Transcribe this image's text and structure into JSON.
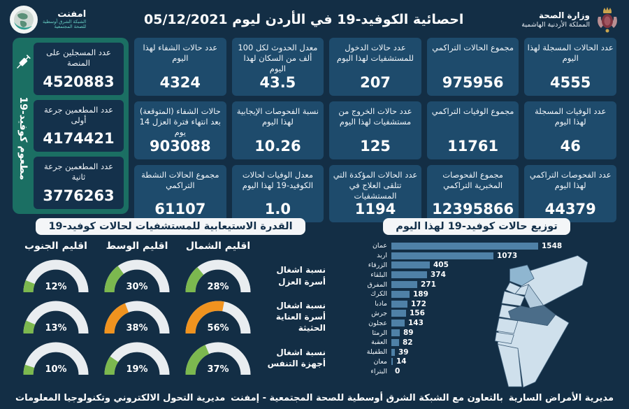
{
  "header": {
    "title": "احصائية الكوفيد-19 في الأردن ليوم  05/12/2021",
    "emphnet": {
      "name": "امفنت",
      "subline1": "الشبكة الشرق أوسطية",
      "subline2": "للصحة المجتمعية"
    },
    "ministry": {
      "name": "وزارة الصحة",
      "country": "المملكة الأردنية الهاشمية"
    }
  },
  "vaccination": {
    "side_label": "مطعوم كوفيد-19",
    "cards": [
      {
        "label": "عدد المسجلين على المنصة",
        "value": "4520883"
      },
      {
        "label": "عدد المطعمين جرعة أولى",
        "value": "4174421"
      },
      {
        "label": "عدد المطعمين جرعة ثانية",
        "value": "3776263"
      }
    ]
  },
  "stat_cards": [
    {
      "label": "عدد الحالات المسجلة لهذا اليوم",
      "value": "4555"
    },
    {
      "label": "مجموع الحالات التراكمي",
      "value": "975956"
    },
    {
      "label": "عدد حالات الدخول للمستشفيات لهذا اليوم",
      "value": "207"
    },
    {
      "label": "معدل الحدوث لكل 100 ألف من السكان لهذا اليوم",
      "value": "43.5"
    },
    {
      "label": "عدد حالات الشفاء لهذا اليوم",
      "value": "4324"
    },
    {
      "label": "عدد الوفيات المسجلة لهذا اليوم",
      "value": "46"
    },
    {
      "label": "مجموع الوفيات التراكمي",
      "value": "11761"
    },
    {
      "label": "عدد حالات الخروج من مستشفيات لهذا اليوم",
      "value": "125"
    },
    {
      "label": "نسبة الفحوصات الإيجابية لهذا اليوم",
      "value": "10.26"
    },
    {
      "label": "حالات الشفاء (المتوقعة) بعد انتهاء فترة العزل 14 يوم",
      "value": "903088"
    },
    {
      "label": "عدد الفحوصات التراكمي لهذا اليوم",
      "value": "44379"
    },
    {
      "label": "مجموع الفحوصات المخبرية التراكمي",
      "value": "12395866"
    },
    {
      "label": "عدد الحالات المؤكدة التي تتلقى العلاج في المستشفيات",
      "value": "1194"
    },
    {
      "label": "معدل الوفيات لحالات الكوفيد-19 لهذا اليوم",
      "value": "1.0"
    },
    {
      "label": "مجموع الحالات النشطة التراكمي",
      "value": "61107"
    }
  ],
  "chart_data": [
    {
      "type": "bar",
      "orientation": "horizontal",
      "title": "توزيع حالات كوفيد-19 لهذا اليوم",
      "categories": [
        "عمان",
        "اربد",
        "الزرقاء",
        "البلقاء",
        "المفرق",
        "الكرك",
        "مادبا",
        "جرش",
        "عجلون",
        "الرمثا",
        "العقبة",
        "الطفيلة",
        "معان",
        "البتراء"
      ],
      "values": [
        1548,
        1073,
        405,
        374,
        271,
        189,
        172,
        156,
        143,
        89,
        82,
        39,
        14,
        0
      ],
      "xlim": [
        0,
        1548
      ],
      "bar_color": "#4f81a7"
    },
    {
      "type": "gauge",
      "title": "القدرة الاستيعابية للمستشفيات لحالات كوفيد-19",
      "unit": "%",
      "columns": [
        "اقليم الشمال",
        "اقليم الوسط",
        "اقليم الجنوب"
      ],
      "rows": [
        {
          "label": "نسبة اشغال أسرة العزل",
          "values": [
            28,
            30,
            12
          ],
          "levels": [
            "green",
            "green",
            "green"
          ]
        },
        {
          "label": "نسبة اشغال أسرة العناية الحثيثة",
          "values": [
            56,
            38,
            13
          ],
          "levels": [
            "orange",
            "orange",
            "green"
          ]
        },
        {
          "label": "نسبة اشغال أجهزة التنفس",
          "values": [
            37,
            19,
            10
          ],
          "levels": [
            "green",
            "green",
            "green"
          ]
        }
      ]
    }
  ],
  "footer": {
    "right": "مديرية الأمراض السارية",
    "center": "بالتعاون مع الشبكة الشرق أوسطية للصحة المجتمعية - إمفنت",
    "left": "مديرية التحول الالكتروني وتكنولوجيا المعلومات"
  },
  "colors": {
    "green": "#7cb84f",
    "orange": "#f0931f",
    "gauge_track": "#e9edf0",
    "bar": "#4f81a7",
    "card": "#1e4b6c",
    "panel_green": "#1b6f63",
    "page": "#132e45"
  }
}
